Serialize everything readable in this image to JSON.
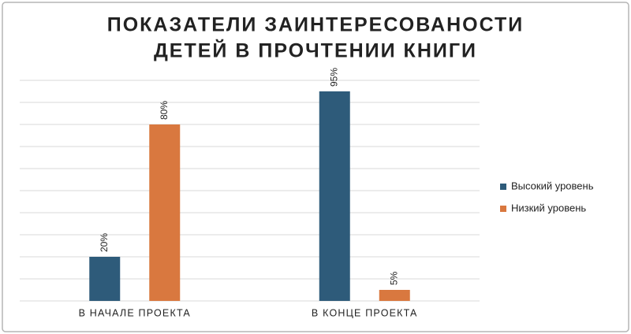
{
  "chart_data": {
    "type": "bar",
    "title": [
      "ПОКАЗАТЕЛИ ЗАИНТЕРЕСОВАНОСТИ",
      "ДЕТЕЙ В ПРОЧТЕНИИ КНИГИ"
    ],
    "categories": [
      "В НАЧАЛЕ ПРОЕКТА",
      "В КОНЦЕ ПРОЕКТА"
    ],
    "series": [
      {
        "name": "Высокий уровень",
        "color": "#2e5b7a",
        "values": [
          20,
          95
        ],
        "value_labels": [
          "20%",
          "95%"
        ]
      },
      {
        "name": "Низкий уровень",
        "color": "#d9783f",
        "values": [
          80,
          5
        ],
        "value_labels": [
          "80%",
          "5%"
        ]
      }
    ],
    "ylim": [
      0,
      100
    ],
    "yticks": [
      0,
      10,
      20,
      30,
      40,
      50,
      60,
      70,
      80,
      90,
      100
    ],
    "show_tick_labels": false,
    "grid": true,
    "legend": "right"
  }
}
